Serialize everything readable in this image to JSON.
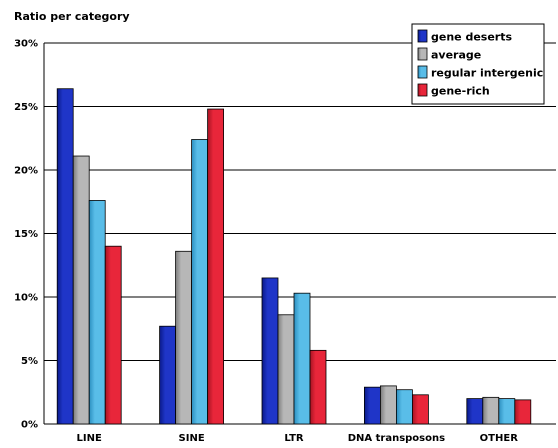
{
  "chart_data": {
    "type": "bar",
    "ylabel": "Ratio per category",
    "xlabel": "",
    "title": "",
    "categories": [
      "LINE",
      "SINE",
      "LTR",
      "DNA transposons",
      "OTHER"
    ],
    "series": [
      {
        "name": "gene deserts",
        "values": [
          26.4,
          7.7,
          11.5,
          2.9,
          2.0
        ]
      },
      {
        "name": "average",
        "values": [
          21.1,
          13.6,
          8.6,
          3.0,
          2.1
        ]
      },
      {
        "name": "regular intergenic",
        "values": [
          17.6,
          22.4,
          10.3,
          2.7,
          2.0
        ]
      },
      {
        "name": "gene-rich",
        "values": [
          14.0,
          24.8,
          5.8,
          2.3,
          1.9
        ]
      }
    ],
    "ylim": [
      0,
      30
    ],
    "yticks": [
      "0%",
      "5%",
      "10%",
      "15%",
      "20%",
      "25%",
      "30%"
    ],
    "grid": true,
    "legend_position": "top-right",
    "colors": {
      "series": [
        "#1f35c8",
        "#b7b7b7",
        "#59bde8",
        "#e8263a"
      ],
      "shades": [
        "#0a1a8a",
        "#7d7d7d",
        "#2c8fc0",
        "#a81423"
      ],
      "plot_background": "#ffffff",
      "gridline": "#000000"
    }
  }
}
